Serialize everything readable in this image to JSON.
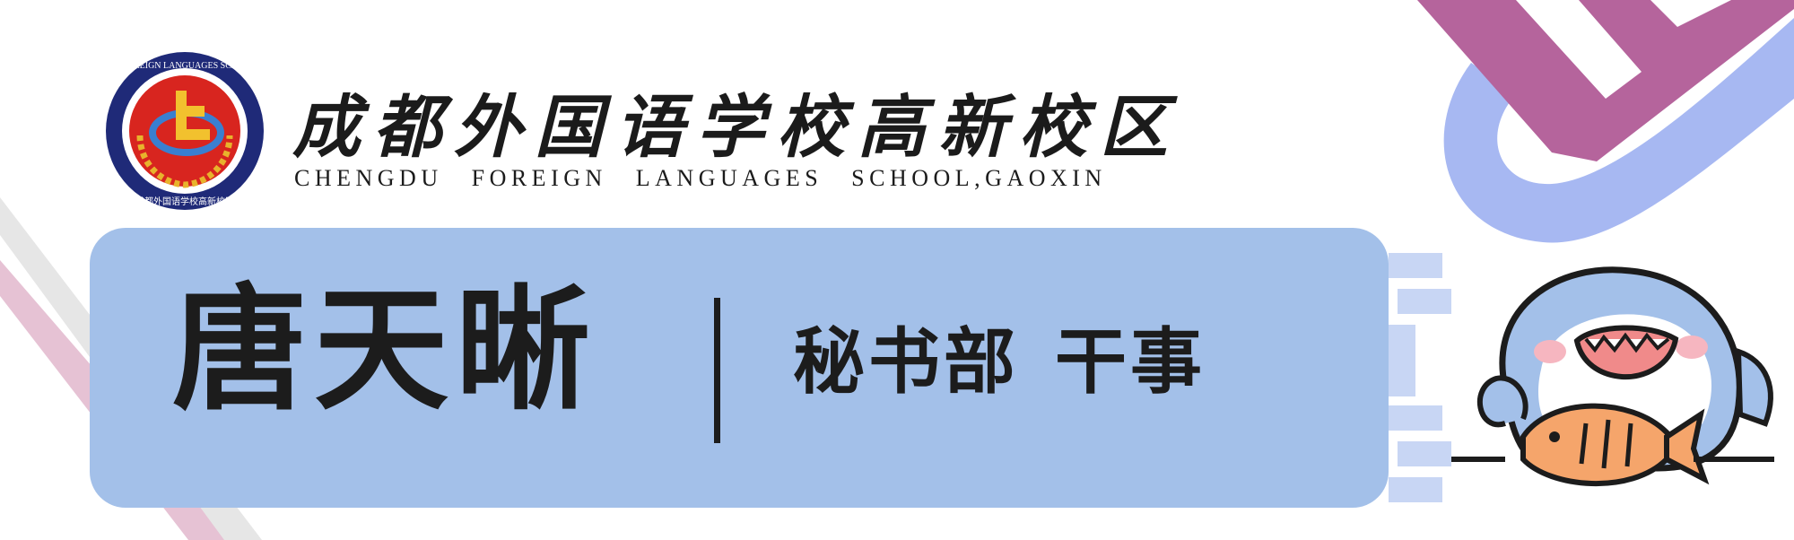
{
  "header": {
    "school_name_cn": "成都外国语学校高新校区",
    "school_name_en": "CHENGDU FOREIGN LANGUAGES SCHOOL,GAOXIN",
    "logo_ring_top": "CHENGDU FOREIGN LANGUAGES SCHOOL GAOXIN",
    "logo_ring_bottom": "成都外国语学校高新校区"
  },
  "card": {
    "name": "唐天晰",
    "department": "秘书部",
    "position": "干事"
  },
  "colors": {
    "card": "#a3c0e9",
    "text": "#1c1c1c",
    "logo_navy": "#1f2a78",
    "logo_red": "#d8251f",
    "logo_gold": "#e8b32c",
    "deco_purple": "#b5649c",
    "deco_blue": "#a7b8f2",
    "deco_pink": "#e6c2d4"
  }
}
